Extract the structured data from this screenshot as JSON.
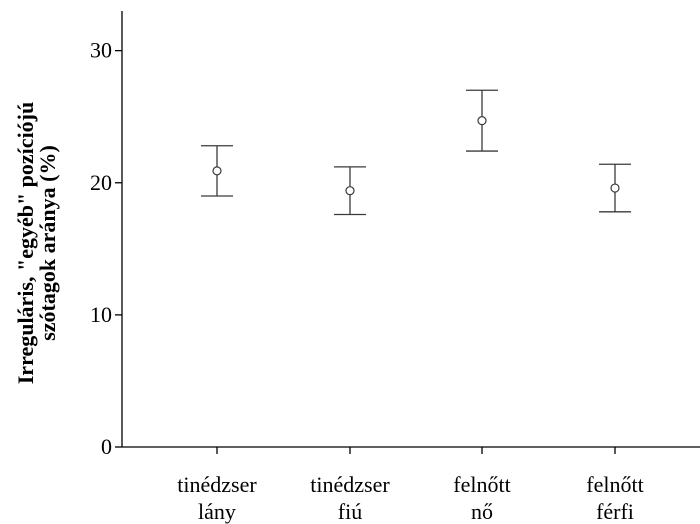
{
  "chart_data": {
    "type": "errorbar",
    "ylabel_lines": [
      "Irreguláris, \"egyéb\" pozíciójú",
      "szótagok aránya (%)"
    ],
    "ylim": [
      0,
      33
    ],
    "yticks": [
      0,
      10,
      20,
      30
    ],
    "categories": [
      [
        "tinédzser",
        "lány"
      ],
      [
        "tinédzser",
        "fiú"
      ],
      [
        "felnőtt",
        "nő"
      ],
      [
        "felnőtt",
        "férfi"
      ]
    ],
    "points": [
      {
        "mean": 20.9,
        "lower": 19.0,
        "upper": 22.8
      },
      {
        "mean": 19.4,
        "lower": 17.6,
        "upper": 21.2
      },
      {
        "mean": 24.7,
        "lower": 22.4,
        "upper": 27.0
      },
      {
        "mean": 19.6,
        "lower": 17.8,
        "upper": 21.4
      }
    ],
    "grid": false,
    "legend": "none",
    "colors": {
      "marks": "#3a3a3a",
      "axis": "#000000"
    }
  }
}
